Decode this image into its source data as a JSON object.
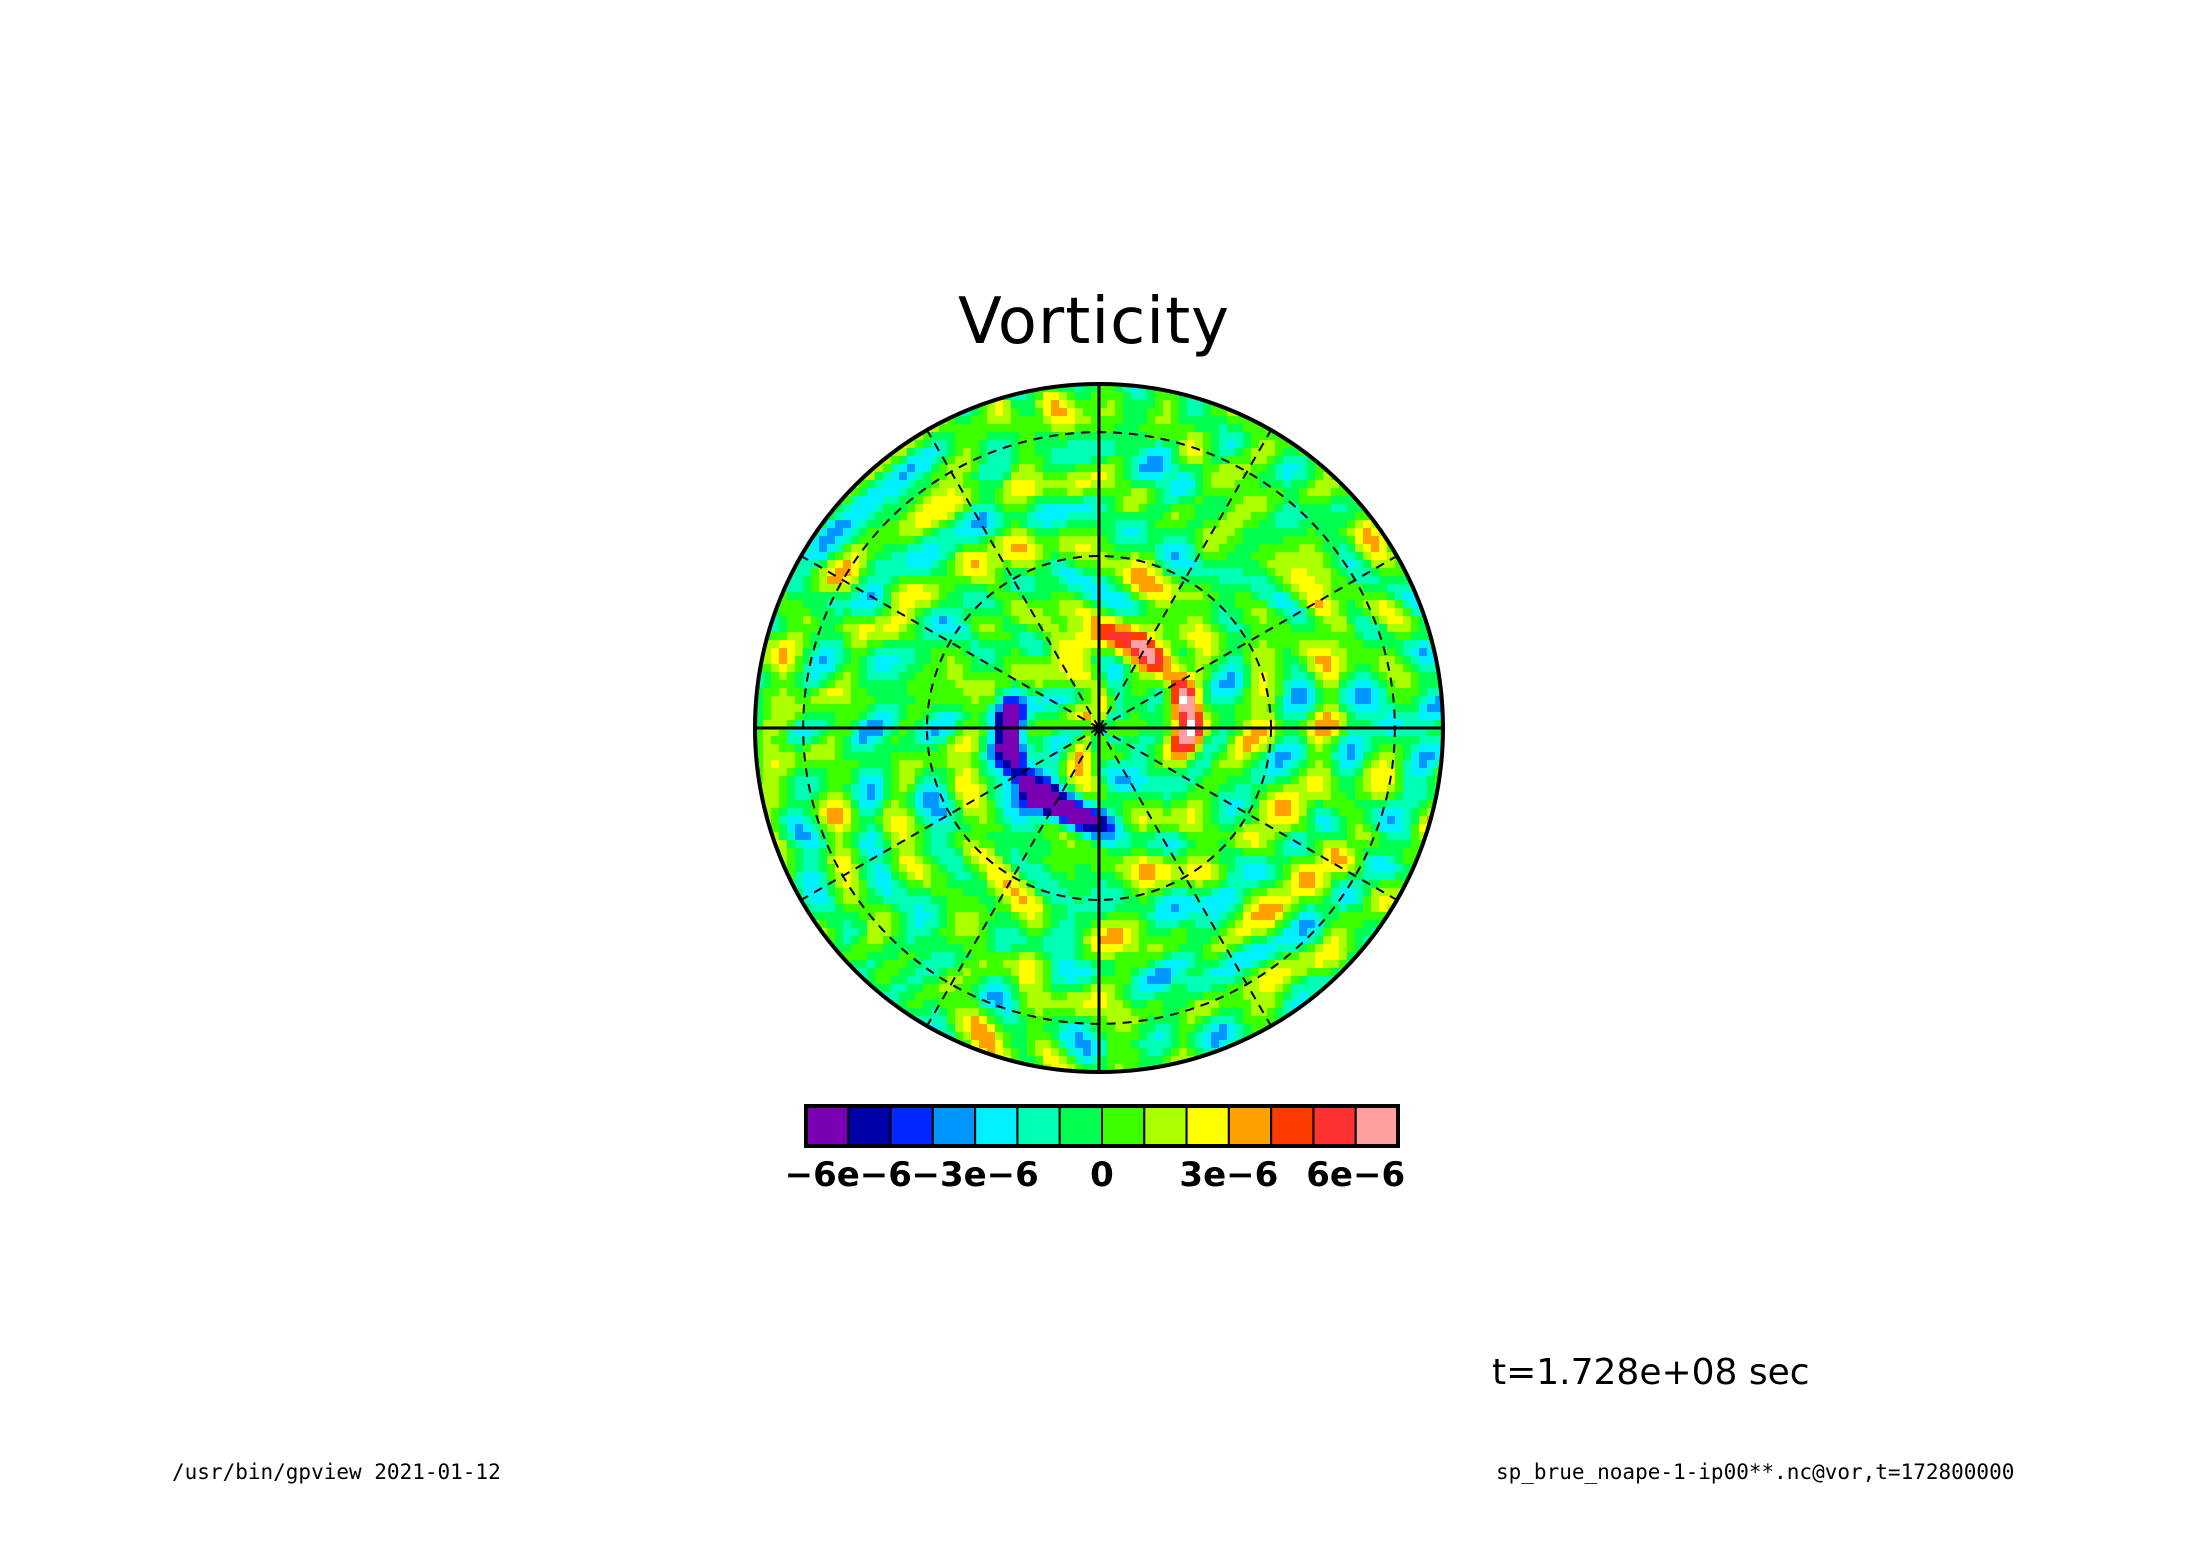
{
  "chart_data": {
    "type": "heatmap",
    "title": "Vorticity",
    "projection": "polar-stereographic",
    "grid": true,
    "colorbar": {
      "position": "bottom",
      "levels": [
        -7e-06,
        -6e-06,
        -5e-06,
        -4e-06,
        -3e-06,
        -2e-06,
        -1e-06,
        0,
        1e-06,
        2e-06,
        3e-06,
        4e-06,
        5e-06,
        6e-06,
        7e-06
      ],
      "colors": [
        "#7a00b4",
        "#0000a8",
        "#0028ff",
        "#0096ff",
        "#00f0ff",
        "#00ffb4",
        "#00ff50",
        "#3cff00",
        "#aaff00",
        "#ffff00",
        "#ffa000",
        "#ff3c00",
        "#ff3232",
        "#ffa0a0"
      ],
      "tick_labels": [
        {
          "label": "−6e−6",
          "value": -6e-06
        },
        {
          "label": "−3e−6",
          "value": -3e-06
        },
        {
          "label": "0",
          "value": 0
        },
        {
          "label": "3e−6",
          "value": 3e-06
        },
        {
          "label": "6e−6",
          "value": 6e-06
        }
      ]
    }
  },
  "annotations": {
    "time": "t=1.728e+08 sec",
    "footer_left": "/usr/bin/gpview  2021-01-12",
    "footer_right": "sp_brue_noape-1-ip00**.nc@vor,t=172800000"
  }
}
